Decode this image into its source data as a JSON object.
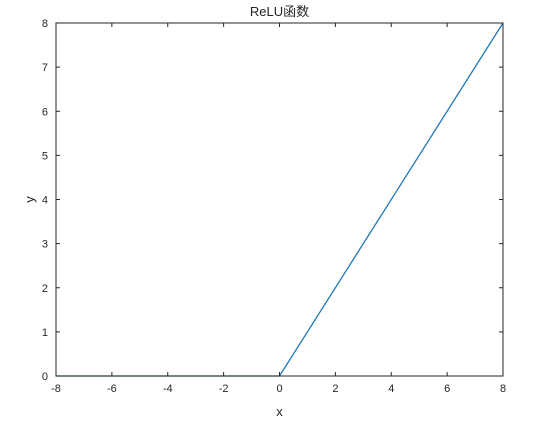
{
  "chart_data": {
    "type": "line",
    "title": "ReLU函数",
    "xlabel": "x",
    "ylabel": "y",
    "xlim": [
      -8,
      8
    ],
    "ylim": [
      0,
      8
    ],
    "xticks": [
      -8,
      -6,
      -4,
      -2,
      0,
      2,
      4,
      6,
      8
    ],
    "yticks": [
      0,
      1,
      2,
      3,
      4,
      5,
      6,
      7,
      8
    ],
    "grid": false,
    "series": [
      {
        "color": "#1f77b4",
        "x": [
          -8,
          0,
          8
        ],
        "y": [
          0,
          0,
          8
        ]
      }
    ]
  }
}
